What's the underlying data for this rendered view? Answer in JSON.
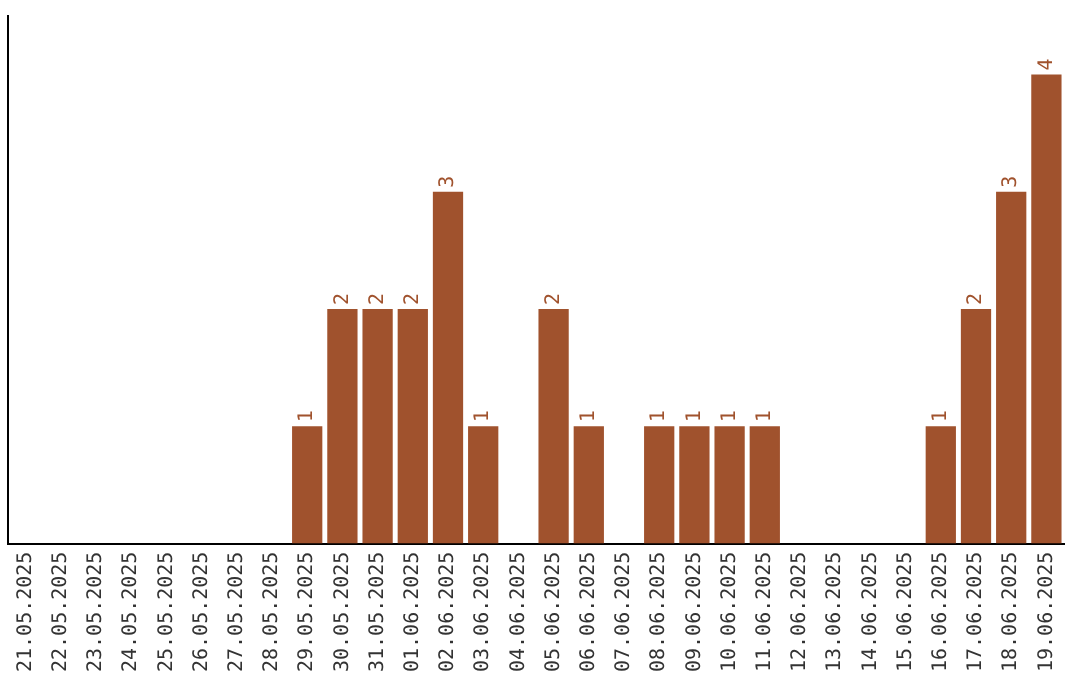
{
  "chart_data": {
    "type": "bar",
    "categories": [
      "21.05.2025",
      "22.05.2025",
      "23.05.2025",
      "24.05.2025",
      "25.05.2025",
      "26.05.2025",
      "27.05.2025",
      "28.05.2025",
      "29.05.2025",
      "30.05.2025",
      "31.05.2025",
      "01.06.2025",
      "02.06.2025",
      "03.06.2025",
      "04.06.2025",
      "05.06.2025",
      "06.06.2025",
      "07.06.2025",
      "08.06.2025",
      "09.06.2025",
      "10.06.2025",
      "11.06.2025",
      "12.06.2025",
      "13.06.2025",
      "14.06.2025",
      "15.06.2025",
      "16.06.2025",
      "17.06.2025",
      "18.06.2025",
      "19.06.2025"
    ],
    "values": [
      0,
      0,
      0,
      0,
      0,
      0,
      0,
      0,
      1,
      2,
      2,
      2,
      3,
      1,
      0,
      2,
      1,
      0,
      1,
      1,
      1,
      1,
      0,
      0,
      0,
      0,
      1,
      2,
      3,
      4
    ],
    "value_labels": [
      null,
      null,
      null,
      null,
      null,
      null,
      null,
      null,
      "1",
      "2",
      "2",
      "2",
      "3",
      "1",
      null,
      "2",
      "1",
      null,
      "1",
      "1",
      "1",
      "1",
      null,
      null,
      null,
      null,
      "1",
      "2",
      "3",
      "4"
    ],
    "color": "#a0522d",
    "grid": false,
    "legend": false
  }
}
